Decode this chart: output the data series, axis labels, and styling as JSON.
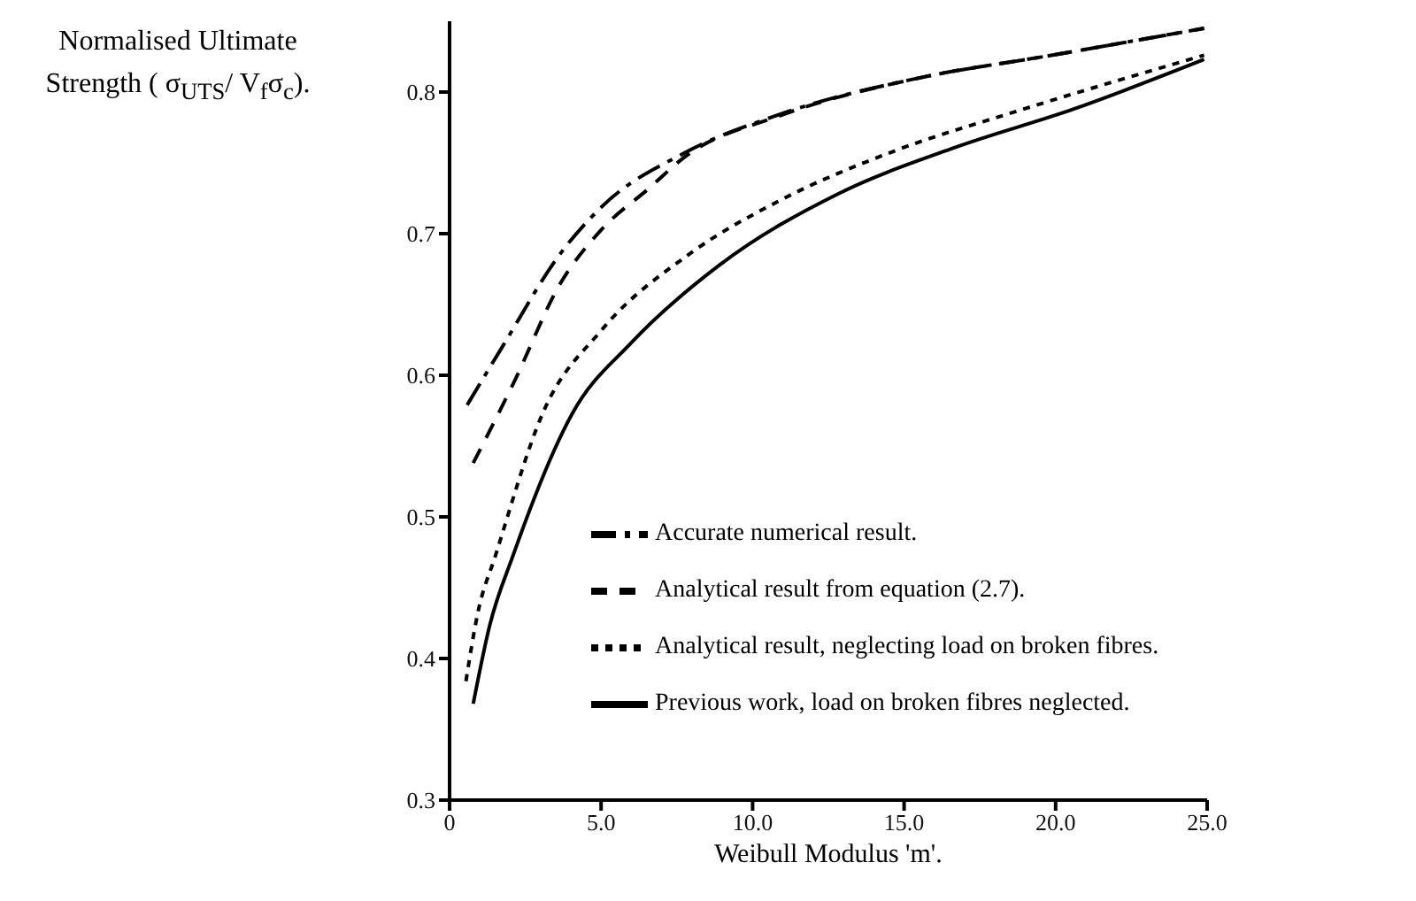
{
  "chart_data": {
    "type": "line",
    "xlabel": "Weibull Modulus 'm'.",
    "ylabel": "Normalised Ultimate Strength ( σ$_{UTS}$/ V$_{f}$σ$_{c}$).",
    "xlim": [
      0,
      25
    ],
    "xticks": [
      0,
      {
        "value": 5,
        "label": "5.0"
      },
      {
        "value": 10,
        "label": "10.0"
      },
      {
        "value": 15,
        "label": "15.0"
      },
      {
        "value": 20,
        "label": "20.0"
      },
      {
        "value": 25,
        "label": "25.0"
      }
    ],
    "ylim": [
      0.3,
      0.85
    ],
    "yticks": [
      0.3,
      0.4,
      0.5,
      0.6,
      0.7,
      0.8
    ],
    "grid": false,
    "legend": "bottom right",
    "marker": "none",
    "series": [
      {
        "name": "Accurate numerical result.",
        "color": "#000000",
        "line_style": "dashdot",
        "x": [
          0.58,
          1.71,
          3.66,
          5.02,
          7.75,
          10.86,
          15.73,
          19.6,
          24.9
        ],
        "values": [
          0.579,
          0.619,
          0.686,
          0.719,
          0.757,
          0.784,
          0.811,
          0.825,
          0.845
        ]
      },
      {
        "name": "Analytical result from equation (2.7).",
        "color": "#000000",
        "line_style": "dashed",
        "x": [
          0.78,
          2.1,
          3.66,
          5.02,
          6.58,
          7.75,
          10.86,
          15.73,
          19.6,
          24.9
        ],
        "values": [
          0.538,
          0.594,
          0.665,
          0.703,
          0.732,
          0.754,
          0.783,
          0.811,
          0.825,
          0.845
        ]
      },
      {
        "name": "Analytical result, neglecting load on broken fibres.",
        "color": "#000000",
        "line_style": "dotted",
        "x": [
          0.54,
          0.93,
          1.52,
          3.07,
          5.02,
          7.94,
          10.86,
          14.76,
          18.65,
          24.9
        ],
        "values": [
          0.384,
          0.432,
          0.473,
          0.573,
          0.632,
          0.686,
          0.723,
          0.759,
          0.786,
          0.826
        ]
      },
      {
        "name": "Previous work, load on broken fibres neglected.",
        "color": "#000000",
        "line_style": "solid",
        "x": [
          0.78,
          1.32,
          2.1,
          4.05,
          6.0,
          8.92,
          12.81,
          16.7,
          20.6,
          24.9
        ],
        "values": [
          0.368,
          0.423,
          0.473,
          0.573,
          0.623,
          0.678,
          0.728,
          0.761,
          0.788,
          0.823
        ]
      }
    ]
  }
}
